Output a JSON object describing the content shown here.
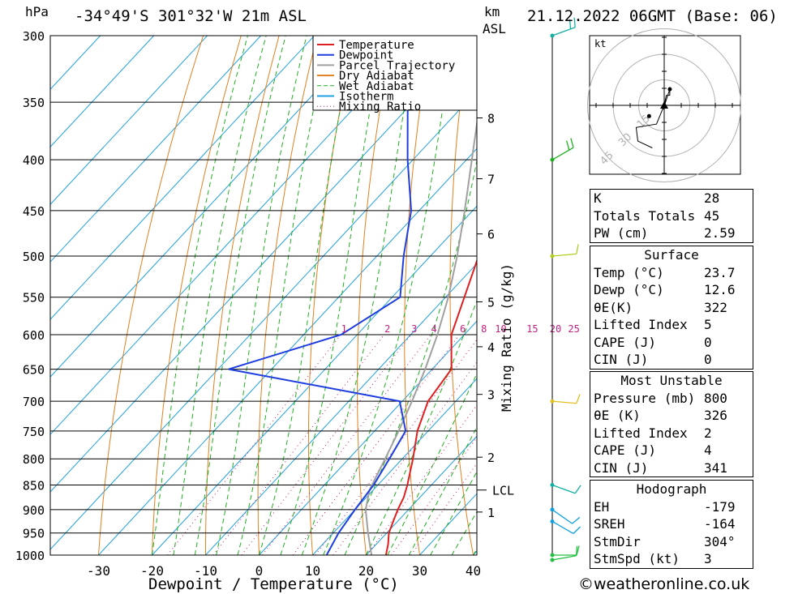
{
  "header": {
    "pressure_unit": "hPa",
    "location": "-34°49'S  301°32'W  21m  ASL",
    "km_label": "km",
    "asl_label": "ASL",
    "datetime": "21.12.2022  06GMT  (Base: 06)"
  },
  "legend": [
    {
      "label": "Temperature",
      "color": "#e02020",
      "style": "solid"
    },
    {
      "label": "Dewpoint",
      "color": "#1e3ee0",
      "style": "solid"
    },
    {
      "label": "Parcel Trajectory",
      "color": "#a0a0a0",
      "style": "solid"
    },
    {
      "label": "Dry Adiabat",
      "color": "#e08020",
      "style": "solid"
    },
    {
      "label": "Wet Adiabat",
      "color": "#20b020",
      "style": "dashed"
    },
    {
      "label": "Isotherm",
      "color": "#20a0e0",
      "style": "solid"
    },
    {
      "label": "Mixing Ratio",
      "color": "#c02080",
      "style": "dotted"
    }
  ],
  "chart_data": {
    "type": "skew-t",
    "xlabel": "Dewpoint / Temperature (°C)",
    "ylabel": "hPa",
    "xlim": [
      -40,
      40
    ],
    "x_ticks": [
      -30,
      -20,
      -10,
      0,
      10,
      20,
      30,
      40
    ],
    "pressure_levels": [
      300,
      350,
      400,
      450,
      500,
      550,
      600,
      650,
      700,
      750,
      800,
      850,
      900,
      950,
      1000
    ],
    "temperature": [
      {
        "p": 1000,
        "t": 23.7
      },
      {
        "p": 975,
        "t": 22.2
      },
      {
        "p": 950,
        "t": 20.4
      },
      {
        "p": 925,
        "t": 19.2
      },
      {
        "p": 900,
        "t": 18.0
      },
      {
        "p": 875,
        "t": 17.0
      },
      {
        "p": 850,
        "t": 15.5
      },
      {
        "p": 800,
        "t": 12.0
      },
      {
        "p": 750,
        "t": 8.0
      },
      {
        "p": 700,
        "t": 4.8
      },
      {
        "p": 650,
        "t": 3.6
      },
      {
        "p": 600,
        "t": -2.4
      },
      {
        "p": 550,
        "t": -6.5
      },
      {
        "p": 500,
        "t": -11.0
      },
      {
        "p": 450,
        "t": -16.5
      },
      {
        "p": 400,
        "t": -23.0
      },
      {
        "p": 350,
        "t": -30.5
      },
      {
        "p": 300,
        "t": -39.5
      }
    ],
    "dewpoint": [
      {
        "p": 1000,
        "t": 12.6
      },
      {
        "p": 950,
        "t": 11.0
      },
      {
        "p": 900,
        "t": 10.0
      },
      {
        "p": 850,
        "t": 9.2
      },
      {
        "p": 800,
        "t": 7.6
      },
      {
        "p": 750,
        "t": 5.8
      },
      {
        "p": 700,
        "t": -0.5
      },
      {
        "p": 650,
        "t": -38.0
      },
      {
        "p": 600,
        "t": -23.0
      },
      {
        "p": 550,
        "t": -18.5
      },
      {
        "p": 500,
        "t": -25.0
      },
      {
        "p": 450,
        "t": -31.5
      },
      {
        "p": 400,
        "t": -41.0
      },
      {
        "p": 350,
        "t": -51.0
      },
      {
        "p": 300,
        "t": -59.0
      }
    ],
    "parcel": [
      {
        "p": 1000,
        "t": 21.0
      },
      {
        "p": 950,
        "t": 16.5
      },
      {
        "p": 900,
        "t": 12.0
      },
      {
        "p": 860,
        "t": 9.3
      },
      {
        "p": 800,
        "t": 6.8
      },
      {
        "p": 750,
        "t": 4.5
      },
      {
        "p": 700,
        "t": 1.8
      },
      {
        "p": 650,
        "t": -1.3
      },
      {
        "p": 600,
        "t": -5.0
      },
      {
        "p": 550,
        "t": -9.5
      },
      {
        "p": 500,
        "t": -15.0
      },
      {
        "p": 450,
        "t": -21.5
      },
      {
        "p": 400,
        "t": -29.0
      },
      {
        "p": 350,
        "t": -37.5
      },
      {
        "p": 300,
        "t": -46.5
      }
    ],
    "mixing_ratio_labels": [
      "1",
      "2",
      "3",
      "4",
      "6",
      "8",
      "10",
      "15",
      "20",
      "25"
    ],
    "mixing_ratio_axis_label": "Mixing Ratio (g/kg)",
    "km_ticks": [
      {
        "label": "1",
        "p": 905
      },
      {
        "label": "2",
        "p": 797
      },
      {
        "label": "3",
        "p": 689
      },
      {
        "label": "4",
        "p": 617
      },
      {
        "label": "5",
        "p": 556
      },
      {
        "label": "6",
        "p": 475
      },
      {
        "label": "7",
        "p": 418
      },
      {
        "label": "8",
        "p": 363
      }
    ],
    "lcl": {
      "label": "LCL",
      "p": 860
    },
    "wind_barbs": [
      {
        "p": 300,
        "dir": 250,
        "kt": 20
      },
      {
        "p": 400,
        "dir": 240,
        "kt": 15
      },
      {
        "p": 500,
        "dir": 265,
        "kt": 10
      },
      {
        "p": 700,
        "dir": 275,
        "kt": 10
      },
      {
        "p": 850,
        "dir": 290,
        "kt": 10
      },
      {
        "p": 900,
        "dir": 305,
        "kt": 10
      },
      {
        "p": 925,
        "dir": 300,
        "kt": 10
      },
      {
        "p": 1000,
        "dir": 270,
        "kt": 10
      },
      {
        "p": 1005,
        "dir": 260,
        "kt": 10
      }
    ]
  },
  "hodograph": {
    "unit": "kt",
    "ring_labels": [
      "15",
      "30",
      "45"
    ],
    "trace": [
      [
        -0.6,
        -2.4
      ],
      [
        3.3,
        9.5
      ],
      [
        3.3,
        6.0
      ],
      [
        1.2,
        5.8
      ],
      [
        0,
        0
      ],
      [
        -4.5,
        -11.0
      ],
      [
        -16.5,
        -13.0
      ],
      [
        -15.5,
        -21.0
      ],
      [
        -7.0,
        -25.0
      ]
    ],
    "storm_motion": [
      0,
      0
    ]
  },
  "indices": {
    "rows": [
      {
        "label": "K",
        "value": "28"
      },
      {
        "label": "Totals Totals",
        "value": "45"
      },
      {
        "label": "PW (cm)",
        "value": "2.59"
      }
    ],
    "surface": {
      "title": "Surface",
      "rows": [
        {
          "label": "Temp (°C)",
          "value": "23.7"
        },
        {
          "label": "Dewp (°C)",
          "value": "12.6"
        },
        {
          "label": "θE(K)",
          "value": "322"
        },
        {
          "label": "Lifted Index",
          "value": "5"
        },
        {
          "label": "CAPE (J)",
          "value": "0"
        },
        {
          "label": "CIN (J)",
          "value": "0"
        }
      ]
    },
    "most_unstable": {
      "title": "Most Unstable",
      "rows": [
        {
          "label": "Pressure (mb)",
          "value": "800"
        },
        {
          "label": "θE (K)",
          "value": "326"
        },
        {
          "label": "Lifted Index",
          "value": "2"
        },
        {
          "label": "CAPE (J)",
          "value": "4"
        },
        {
          "label": "CIN (J)",
          "value": "341"
        }
      ]
    },
    "hodograph_stats": {
      "title": "Hodograph",
      "rows": [
        {
          "label": "EH",
          "value": "-179"
        },
        {
          "label": "SREH",
          "value": "-164"
        },
        {
          "label": "StmDir",
          "value": "304°"
        },
        {
          "label": "StmSpd (kt)",
          "value": "3"
        }
      ]
    }
  },
  "copyright": "©weatheronline.co.uk"
}
